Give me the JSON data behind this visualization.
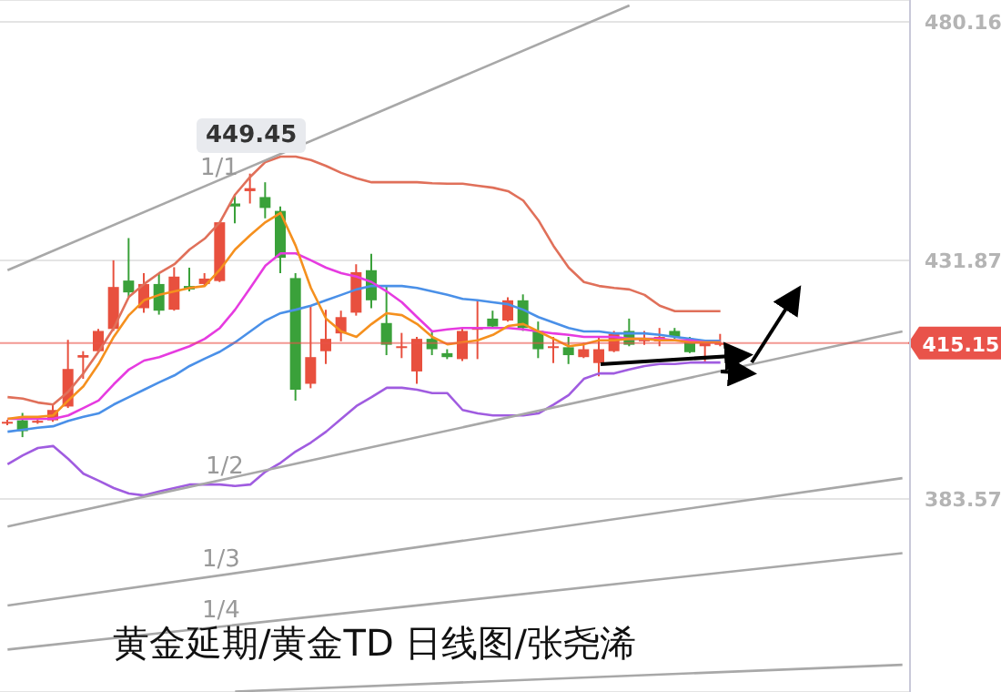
{
  "chart_data": {
    "type": "candlestick",
    "title": "黄金延期/黄金TD 日线图/张尧浠",
    "categories": [
      null,
      null,
      null,
      null,
      null,
      null,
      null,
      null,
      null,
      null,
      null,
      null,
      null,
      null,
      null,
      null,
      null,
      null,
      null,
      null,
      null,
      null,
      null,
      null,
      null,
      null,
      null,
      null,
      null,
      null,
      null,
      null,
      null,
      null,
      null,
      null,
      null,
      null,
      null,
      null,
      null,
      null,
      null,
      null,
      null,
      null,
      null,
      null,
      null,
      null,
      null,
      null,
      null,
      null,
      null,
      null,
      null,
      null,
      null,
      null
    ],
    "ohlc": [
      [
        399.0,
        399.6,
        398.5,
        399.2
      ],
      [
        399.5,
        401.0,
        396.1,
        397.3
      ],
      [
        399.2,
        400.0,
        398.8,
        399.4
      ],
      [
        399.5,
        402.7,
        399.2,
        401.6
      ],
      [
        402.3,
        415.8,
        402.0,
        409.9
      ],
      [
        412.2,
        413.5,
        407.9,
        412.7
      ],
      [
        413.5,
        418.0,
        413.3,
        417.6
      ],
      [
        418.0,
        431.9,
        417.6,
        426.5
      ],
      [
        427.8,
        436.4,
        424.4,
        425.4
      ],
      [
        422.2,
        429.3,
        421.3,
        427.1
      ],
      [
        427.1,
        429.3,
        420.9,
        421.7
      ],
      [
        421.9,
        430.5,
        421.7,
        428.6
      ],
      [
        426.7,
        430.4,
        425.6,
        426.0
      ],
      [
        427.1,
        429.3,
        426.8,
        428.2
      ],
      [
        427.7,
        439.6,
        427.5,
        439.6
      ],
      [
        443.4,
        445.0,
        439.4,
        442.8
      ],
      [
        445.9,
        449.45,
        443.4,
        446.5
      ],
      [
        444.7,
        447.7,
        440.4,
        442.5
      ],
      [
        441.9,
        442.8,
        429.3,
        432.4
      ],
      [
        428.3,
        429.3,
        403.5,
        405.7
      ],
      [
        406.9,
        422.7,
        406.0,
        412.3
      ],
      [
        413.5,
        421.9,
        410.9,
        416.0
      ],
      [
        417.1,
        421.7,
        415.5,
        420.4
      ],
      [
        421.3,
        431.1,
        420.7,
        429.5
      ],
      [
        429.9,
        433.2,
        422.2,
        423.8
      ],
      [
        419.2,
        426.8,
        412.7,
        414.8
      ],
      [
        414.2,
        417.2,
        412.1,
        414.5
      ],
      [
        409.4,
        416.4,
        406.9,
        416.0
      ],
      [
        416.0,
        417.6,
        412.7,
        413.9
      ],
      [
        413.1,
        413.9,
        411.9,
        412.3
      ],
      [
        411.9,
        418.2,
        411.5,
        417.6
      ],
      [
        417.9,
        423.8,
        411.9,
        418.2
      ],
      [
        420.1,
        421.7,
        418.2,
        418.5
      ],
      [
        419.7,
        424.4,
        419.5,
        423.8
      ],
      [
        423.8,
        425.0,
        417.6,
        418.2
      ],
      [
        417.6,
        419.5,
        412.1,
        413.9
      ],
      [
        414.3,
        416.4,
        411.1,
        414.5
      ],
      [
        414.3,
        416.4,
        410.9,
        412.7
      ],
      [
        412.3,
        415.2,
        412.1,
        413.9
      ],
      [
        411.1,
        416.4,
        408.4,
        413.9
      ],
      [
        413.5,
        417.6,
        413.3,
        417.0
      ],
      [
        417.6,
        420.1,
        414.5,
        414.8
      ],
      [
        415.5,
        417.6,
        414.8,
        416.0
      ],
      [
        415.5,
        418.2,
        414.5,
        416.4
      ],
      [
        417.6,
        418.2,
        416.0,
        416.4
      ],
      [
        415.5,
        416.4,
        413.1,
        413.3
      ],
      [
        414.5,
        415.5,
        411.1,
        415.2
      ],
      [
        414.8,
        417.0,
        414.5,
        415.15
      ],
      null,
      null,
      null,
      null,
      null,
      null,
      null,
      null,
      null,
      null,
      null,
      null
    ],
    "colors": [
      "#e8503e",
      "#3aa13a",
      "#e8503e",
      "#e8503e",
      "#e8503e",
      "#e8503e",
      "#e8503e",
      "#e8503e",
      "#3aa13a",
      "#e8503e",
      "#3aa13a",
      "#e8503e",
      "#3aa13a",
      "#e8503e",
      "#e8503e",
      "#3aa13a",
      "#e8503e",
      "#3aa13a",
      "#3aa13a",
      "#3aa13a",
      "#e8503e",
      "#e8503e",
      "#e8503e",
      "#e8503e",
      "#3aa13a",
      "#3aa13a",
      "#e8503e",
      "#e8503e",
      "#3aa13a",
      "#3aa13a",
      "#e8503e",
      "#e8503e",
      "#3aa13a",
      "#e8503e",
      "#3aa13a",
      "#3aa13a",
      "#e8503e",
      "#3aa13a",
      "#e8503e",
      "#e8503e",
      "#e8503e",
      "#3aa13a",
      "#e8503e",
      "#e8503e",
      "#3aa13a",
      "#3aa13a",
      "#e8503e",
      "#e8503e",
      null,
      null,
      null,
      null,
      null,
      null,
      null,
      null,
      null,
      null,
      null,
      null
    ],
    "series": [
      {
        "type": "line",
        "color": "#e0705a",
        "values": [
          404.2,
          403.9,
          403.1,
          402.7,
          405.3,
          409.0,
          413.4,
          418.2,
          424.5,
          427.1,
          429.3,
          431.1,
          434.1,
          436.3,
          439.6,
          445.2,
          448.8,
          451.8,
          452.9,
          452.9,
          452.2,
          451.0,
          449.6,
          448.5,
          447.7,
          447.7,
          447.7,
          447.7,
          447.5,
          447.4,
          447.4,
          447.0,
          446.6,
          445.9,
          444.0,
          440.0,
          434.8,
          430.4,
          427.5,
          426.7,
          426.3,
          426.0,
          424.9,
          422.7,
          421.6,
          421.6,
          421.6,
          421.6,
          null,
          null,
          null,
          null,
          null,
          null,
          null,
          null,
          null,
          null,
          null,
          null
        ]
      },
      {
        "type": "line",
        "color": "#a05ce0",
        "values": [
          390.6,
          392.4,
          393.9,
          394.3,
          391.7,
          388.7,
          387.3,
          385.8,
          384.7,
          384.3,
          385.1,
          385.8,
          386.5,
          386.5,
          386.5,
          386.2,
          386.5,
          389.1,
          390.9,
          393.2,
          395.0,
          397.2,
          399.8,
          402.4,
          404.2,
          406.1,
          406.1,
          405.7,
          405.0,
          405.0,
          401.6,
          400.9,
          400.5,
          400.5,
          400.5,
          400.9,
          402.7,
          404.6,
          407.9,
          409.0,
          409.0,
          409.8,
          410.5,
          410.9,
          410.9,
          411.2,
          411.2,
          411.2,
          null,
          null,
          null,
          null,
          null,
          null,
          null,
          null,
          null,
          null,
          null,
          null
        ]
      },
      {
        "type": "line",
        "color": "#4a90e8",
        "values": [
          397.2,
          397.6,
          398.0,
          398.3,
          399.4,
          400.2,
          400.9,
          402.7,
          404.2,
          405.7,
          407.2,
          408.6,
          410.5,
          412.0,
          413.4,
          415.3,
          417.5,
          419.7,
          421.2,
          421.9,
          422.7,
          423.8,
          424.9,
          426.0,
          426.7,
          426.7,
          426.7,
          426.3,
          425.6,
          424.9,
          424.1,
          423.8,
          423.4,
          423.0,
          421.9,
          420.4,
          419.3,
          418.2,
          417.5,
          417.5,
          417.1,
          417.1,
          417.1,
          416.8,
          416.4,
          416.0,
          415.6,
          415.6,
          null,
          null,
          null,
          null,
          null,
          null,
          null,
          null,
          null,
          null,
          null,
          null
        ]
      },
      {
        "type": "line",
        "color": "#e63be0",
        "values": [
          399.8,
          399.8,
          399.8,
          399.8,
          400.5,
          402.0,
          403.5,
          406.8,
          409.8,
          411.6,
          412.3,
          413.4,
          414.5,
          416.0,
          418.2,
          421.9,
          426.3,
          430.8,
          433.3,
          433.3,
          431.9,
          430.4,
          429.3,
          428.6,
          427.5,
          425.6,
          423.4,
          420.4,
          417.5,
          417.9,
          418.2,
          418.2,
          418.2,
          418.2,
          417.9,
          417.5,
          417.1,
          416.8,
          416.4,
          416.4,
          416.4,
          416.0,
          416.0,
          416.0,
          415.7,
          415.7,
          415.3,
          415.3,
          null,
          null,
          null,
          null,
          null,
          null,
          null,
          null,
          null,
          null,
          null,
          null
        ]
      },
      {
        "type": "line",
        "color": "#f5901e",
        "values": [
          399.8,
          400.2,
          400.2,
          400.5,
          403.5,
          406.4,
          410.9,
          416.4,
          420.8,
          423.8,
          424.9,
          425.6,
          426.3,
          426.7,
          430.0,
          434.1,
          437.0,
          439.6,
          441.5,
          434.8,
          426.3,
          420.1,
          417.5,
          416.4,
          419.0,
          421.2,
          420.8,
          419.0,
          416.4,
          414.9,
          415.3,
          415.7,
          416.8,
          418.6,
          419.0,
          417.5,
          416.0,
          414.5,
          414.9,
          415.7,
          415.7,
          416.0,
          416.0,
          415.7,
          415.7,
          415.3,
          415.3,
          415.3,
          null,
          null,
          null,
          null,
          null,
          null,
          null,
          null,
          null,
          null,
          null,
          null
        ]
      },
      {
        "type": "line",
        "color": "#a8a8a8",
        "values": [
          429.9,
          null,
          null,
          null,
          null,
          null,
          null,
          null,
          null,
          null,
          null,
          null,
          null,
          null,
          null,
          null,
          null,
          null,
          null,
          null,
          null,
          null,
          null,
          null,
          null,
          null,
          null,
          null,
          null,
          null,
          null,
          null,
          null,
          null,
          null,
          null,
          null,
          null,
          null,
          null,
          null,
          483.5,
          null,
          null,
          null,
          null,
          null,
          null,
          null,
          null,
          null,
          null,
          null,
          null,
          null,
          null,
          null,
          null,
          null,
          null
        ]
      },
      {
        "type": "line",
        "color": "#a8a8a8",
        "values": [
          378.0,
          null,
          null,
          null,
          null,
          null,
          null,
          null,
          null,
          null,
          null,
          null,
          null,
          null,
          null,
          null,
          null,
          null,
          null,
          null,
          null,
          null,
          null,
          null,
          null,
          null,
          null,
          null,
          null,
          null,
          null,
          null,
          null,
          null,
          null,
          null,
          null,
          null,
          null,
          null,
          null,
          null,
          null,
          null,
          null,
          null,
          null,
          null,
          null,
          null,
          null,
          null,
          null,
          null,
          null,
          null,
          null,
          null,
          null,
          417.5
        ]
      },
      {
        "type": "line",
        "color": "#a8a8a8",
        "values": [
          362.0,
          null,
          null,
          null,
          null,
          null,
          null,
          null,
          null,
          null,
          null,
          null,
          null,
          null,
          null,
          null,
          null,
          null,
          null,
          null,
          null,
          null,
          null,
          null,
          null,
          null,
          null,
          null,
          null,
          null,
          null,
          null,
          null,
          null,
          null,
          null,
          null,
          null,
          null,
          null,
          null,
          null,
          null,
          null,
          null,
          null,
          null,
          null,
          null,
          null,
          null,
          null,
          null,
          null,
          null,
          null,
          null,
          null,
          null,
          387.8
        ]
      },
      {
        "type": "line",
        "color": "#a8a8a8",
        "values": [
          353.1,
          null,
          null,
          null,
          null,
          null,
          null,
          null,
          null,
          null,
          null,
          null,
          null,
          null,
          null,
          null,
          null,
          null,
          null,
          null,
          null,
          null,
          null,
          null,
          null,
          null,
          null,
          null,
          null,
          null,
          null,
          null,
          null,
          null,
          null,
          null,
          null,
          null,
          null,
          null,
          null,
          null,
          null,
          null,
          null,
          null,
          null,
          null,
          null,
          null,
          null,
          null,
          null,
          null,
          null,
          null,
          null,
          null,
          null,
          372.6
        ]
      },
      {
        "type": "line",
        "color": "#a8a8a8",
        "values": [
          null,
          null,
          null,
          null,
          null,
          null,
          null,
          null,
          null,
          null,
          null,
          null,
          null,
          null,
          null,
          344.6,
          null,
          null,
          null,
          null,
          null,
          null,
          null,
          null,
          null,
          null,
          null,
          null,
          null,
          null,
          null,
          null,
          null,
          null,
          null,
          null,
          null,
          null,
          null,
          null,
          null,
          null,
          null,
          null,
          null,
          null,
          null,
          null,
          null,
          null,
          null,
          null,
          null,
          null,
          null,
          null,
          null,
          null,
          null,
          350.0
        ]
      }
    ],
    "ylim": [
      344.5,
      484.6
    ],
    "yticks": [
      480.16,
      431.87,
      383.57
    ],
    "grid": "y",
    "tick_labels": "y",
    "marker": "none",
    "line_style": "solid",
    "ref_lines": [
      {
        "axis": "y",
        "value": 415.15,
        "label": "415.15",
        "color": "#e9534a"
      }
    ],
    "annotations": [
      {
        "text": "449.45",
        "y": 449.45
      },
      "1/1",
      "1/2",
      "1/3",
      "1/4"
    ]
  }
}
